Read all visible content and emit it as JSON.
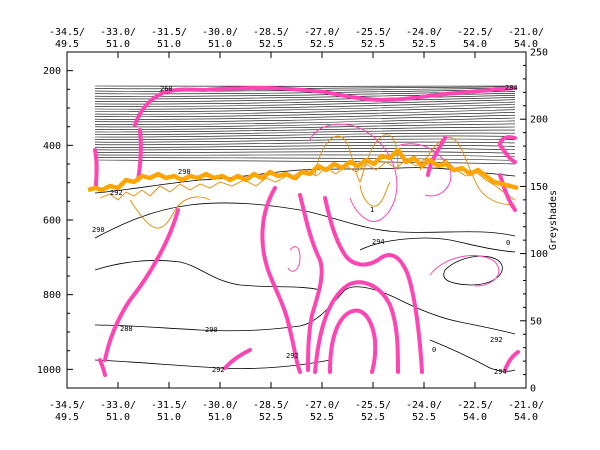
{
  "chart_data": {
    "type": "contour",
    "title": "",
    "y_left": {
      "ticks": [
        200,
        400,
        600,
        800,
        1000
      ],
      "range": [
        150,
        1050
      ],
      "inverted": true
    },
    "y_right": {
      "label": "Greyshades",
      "ticks": [
        0,
        50,
        100,
        150,
        200,
        250
      ],
      "range": [
        0,
        250
      ]
    },
    "x_ticks_top": [
      {
        "lon": "-34.5/",
        "lat": "49.5"
      },
      {
        "lon": "-33.0/",
        "lat": "51.0"
      },
      {
        "lon": "-31.5/",
        "lat": "51.0"
      },
      {
        "lon": "-30.0/",
        "lat": "51.0"
      },
      {
        "lon": "-28.5/",
        "lat": "52.5"
      },
      {
        "lon": "-27.0/",
        "lat": "52.5"
      },
      {
        "lon": "-25.5/",
        "lat": "52.5"
      },
      {
        "lon": "-24.0/",
        "lat": "52.5"
      },
      {
        "lon": "-22.5/",
        "lat": "54.0"
      },
      {
        "lon": "-21.0/",
        "lat": "54.0"
      }
    ],
    "x_ticks_bottom": [
      {
        "lon": "-34.5/",
        "lat": "49.5"
      },
      {
        "lon": "-33.0/",
        "lat": "51.0"
      },
      {
        "lon": "-31.5/",
        "lat": "51.0"
      },
      {
        "lon": "-30.0/",
        "lat": "51.0"
      },
      {
        "lon": "-28.5/",
        "lat": "52.5"
      },
      {
        "lon": "-27.0/",
        "lat": "52.5"
      },
      {
        "lon": "-25.5/",
        "lat": "52.5"
      },
      {
        "lon": "-24.0/",
        "lat": "52.5"
      },
      {
        "lon": "-22.5/",
        "lat": "54.0"
      },
      {
        "lon": "-21.0/",
        "lat": "54.0"
      }
    ],
    "contour_labels": [
      "260",
      "298",
      "292",
      "290",
      "294",
      "290",
      "292",
      "292",
      "294",
      "288",
      "292",
      "284",
      "0",
      "1",
      "0"
    ],
    "colors": {
      "isentropes": "#000000",
      "pv_pink": "#ff44b4",
      "tropopause_orange": "#ffa500",
      "thin_orange": "#e08a00",
      "background": "#ffffff"
    }
  }
}
